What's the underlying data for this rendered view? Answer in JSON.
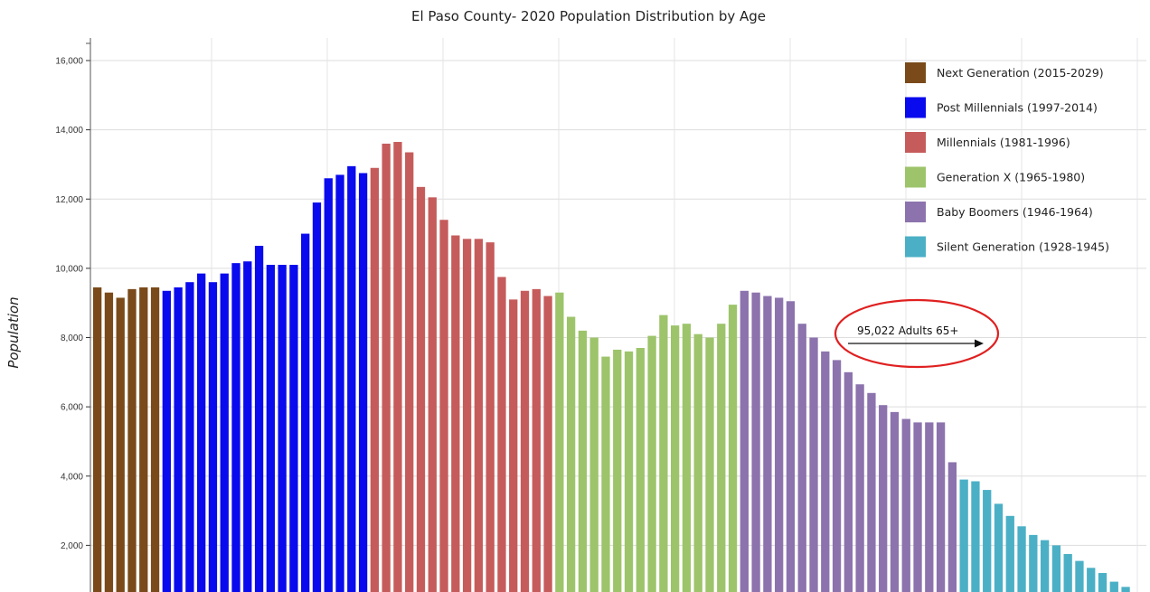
{
  "chart_data": {
    "type": "bar",
    "title": "El Paso County- 2020 Population Distribution by Age",
    "ylabel": "Population",
    "xlabel": "",
    "ylim": [
      0,
      16500
    ],
    "yticks": [
      2000,
      4000,
      6000,
      8000,
      10000,
      12000,
      14000,
      16000
    ],
    "ytick_labels": [
      "2,000",
      "4,000",
      "6,000",
      "8,000",
      "10,000",
      "12,000",
      "14,000",
      "16,000"
    ],
    "grid": true,
    "legend_position": "top-right",
    "series": [
      {
        "name": "Next Generation (2015-2029)",
        "color": "#7a4a1a",
        "values": [
          9450,
          9300,
          9150,
          9400,
          9450,
          9450
        ]
      },
      {
        "name": "Post Millennials (1997-2014)",
        "color": "#0a0aee",
        "values": [
          9350,
          9450,
          9600,
          9850,
          9600,
          9850,
          10150,
          10200,
          10650,
          10100,
          10100,
          10100,
          11000,
          11900,
          12600,
          12700,
          12950,
          12750
        ]
      },
      {
        "name": "Millennials (1981-1996)",
        "color": "#c65b5b",
        "values": [
          12900,
          13600,
          13650,
          13350,
          12350,
          12050,
          11400,
          10950,
          10850,
          10850,
          10750,
          9750,
          9100,
          9350,
          9400,
          9200
        ]
      },
      {
        "name": "Generation X (1965-1980)",
        "color": "#9dc46a",
        "values": [
          9300,
          8600,
          8200,
          8000,
          7450,
          7650,
          7600,
          7700,
          8050,
          8650,
          8350,
          8400,
          8100,
          8000,
          8400,
          8950
        ]
      },
      {
        "name": "Baby Boomers (1946-1964)",
        "color": "#8c73ad",
        "values": [
          9350,
          9300,
          9200,
          9150,
          9050,
          8400,
          8000,
          7600,
          7350,
          7000,
          6650,
          6400,
          6050,
          5850,
          5650,
          5550,
          5550,
          5550,
          4400
        ]
      },
      {
        "name": "Silent Generation (1928-1945)",
        "color": "#4bb0c6",
        "values": [
          3900,
          3850,
          3600,
          3200,
          2850,
          2550,
          2300,
          2150,
          2000,
          1750,
          1550,
          1350,
          1200,
          950,
          800
        ]
      }
    ],
    "annotation": {
      "text": "95,022 Adults 65+"
    }
  }
}
